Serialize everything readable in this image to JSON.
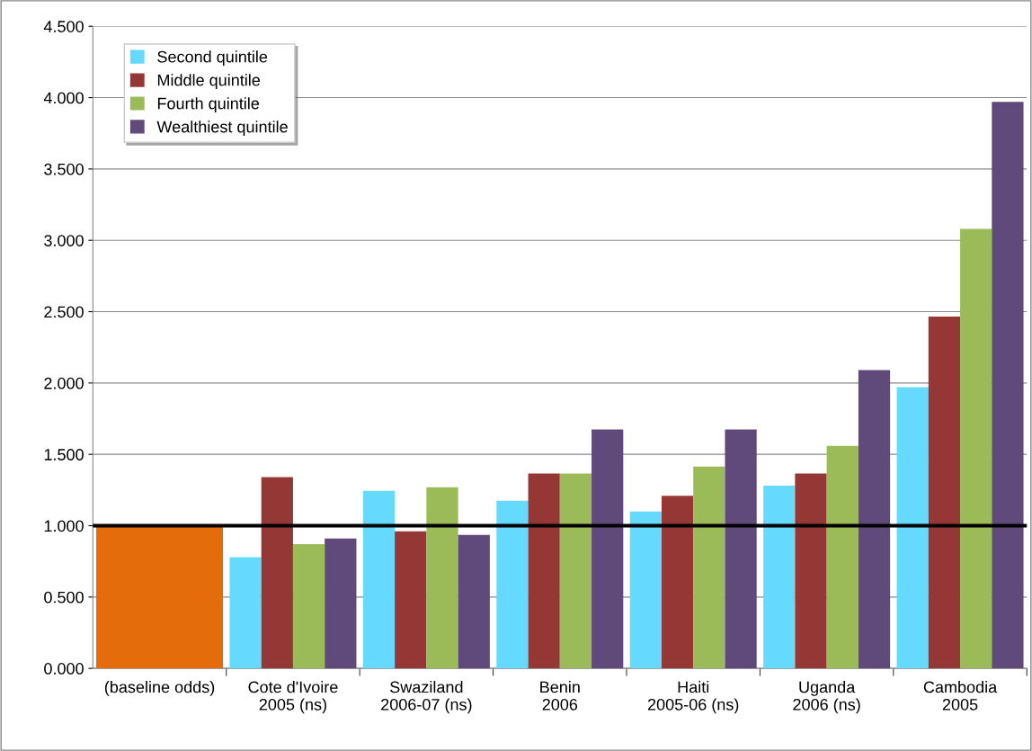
{
  "chart_data": {
    "type": "bar",
    "categories": [
      "(baseline odds)",
      "Cote d'Ivoire\n2005 (ns)",
      "Swaziland\n2006-07 (ns)",
      "Benin\n2006",
      "Haiti\n2005-06 (ns)",
      "Uganda\n2006 (ns)",
      "Cambodia\n2005"
    ],
    "series": [
      {
        "color": "#e46c0a",
        "values": [
          1.0,
          null,
          null,
          null,
          null,
          null,
          null
        ]
      },
      {
        "name": "Second quintile",
        "color": "#66d9ff",
        "values": [
          null,
          0.78,
          1.245,
          1.175,
          1.1,
          1.28,
          1.97
        ]
      },
      {
        "name": "Middle quintile",
        "color": "#953735",
        "values": [
          null,
          1.34,
          0.96,
          1.365,
          1.21,
          1.365,
          2.465
        ]
      },
      {
        "name": "Fourth quintile",
        "color": "#9bbb59",
        "values": [
          null,
          0.87,
          1.27,
          1.365,
          1.415,
          1.56,
          3.08
        ]
      },
      {
        "name": "Wealthiest quintile",
        "color": "#604a7b",
        "values": [
          null,
          0.91,
          0.935,
          1.675,
          1.675,
          2.09,
          3.97
        ]
      }
    ],
    "ylim": [
      0,
      4.5
    ],
    "yticks": [
      {
        "value": 0,
        "label": "0.000"
      },
      {
        "value": 0.5,
        "label": "0.500"
      },
      {
        "value": 1,
        "label": "1.000"
      },
      {
        "value": 1.5,
        "label": "1.500"
      },
      {
        "value": 2,
        "label": "2.000"
      },
      {
        "value": 2.5,
        "label": "2.500"
      },
      {
        "value": 3,
        "label": "3.000"
      },
      {
        "value": 3.5,
        "label": "3.500"
      },
      {
        "value": 4,
        "label": "4.000"
      },
      {
        "value": 4.5,
        "label": "4.500"
      }
    ],
    "grid": "y",
    "legend": "top left",
    "ref_lines": [
      {
        "axis": "y",
        "value": 1,
        "color": "#000000"
      }
    ]
  }
}
